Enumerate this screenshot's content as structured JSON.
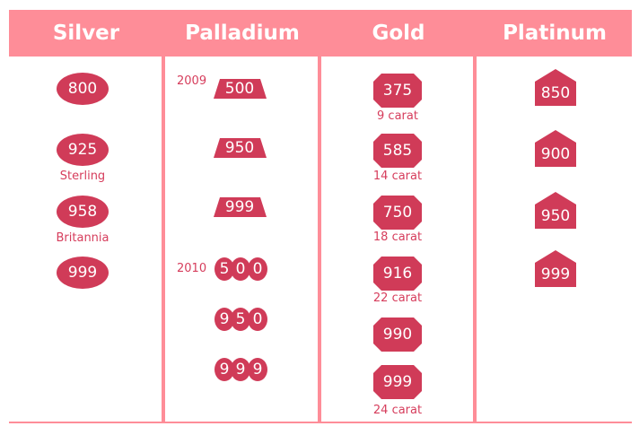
{
  "columns": [
    {
      "title": "Silver"
    },
    {
      "title": "Palladium"
    },
    {
      "title": "Gold"
    },
    {
      "title": "Platinum"
    }
  ],
  "colors": {
    "header": "#fe8d98",
    "mark": "#d03b58",
    "text": "#d63d5c"
  },
  "silver": {
    "marks": [
      {
        "value": "800",
        "caption": ""
      },
      {
        "value": "925",
        "caption": "Sterling"
      },
      {
        "value": "958",
        "caption": "Britannia"
      },
      {
        "value": "999",
        "caption": ""
      }
    ]
  },
  "palladium": {
    "years": [
      "2009",
      "2010"
    ],
    "marks_2009": [
      "500",
      "950",
      "999"
    ],
    "marks_2010": [
      [
        "5",
        "0",
        "0"
      ],
      [
        "9",
        "5",
        "0"
      ],
      [
        "9",
        "9",
        "9"
      ]
    ]
  },
  "gold": {
    "marks": [
      {
        "value": "375",
        "caption": "9 carat"
      },
      {
        "value": "585",
        "caption": "14 carat"
      },
      {
        "value": "750",
        "caption": "18 carat"
      },
      {
        "value": "916",
        "caption": "22 carat"
      },
      {
        "value": "990",
        "caption": ""
      },
      {
        "value": "999",
        "caption": "24 carat"
      }
    ]
  },
  "platinum": {
    "marks": [
      "850",
      "900",
      "950",
      "999"
    ]
  }
}
